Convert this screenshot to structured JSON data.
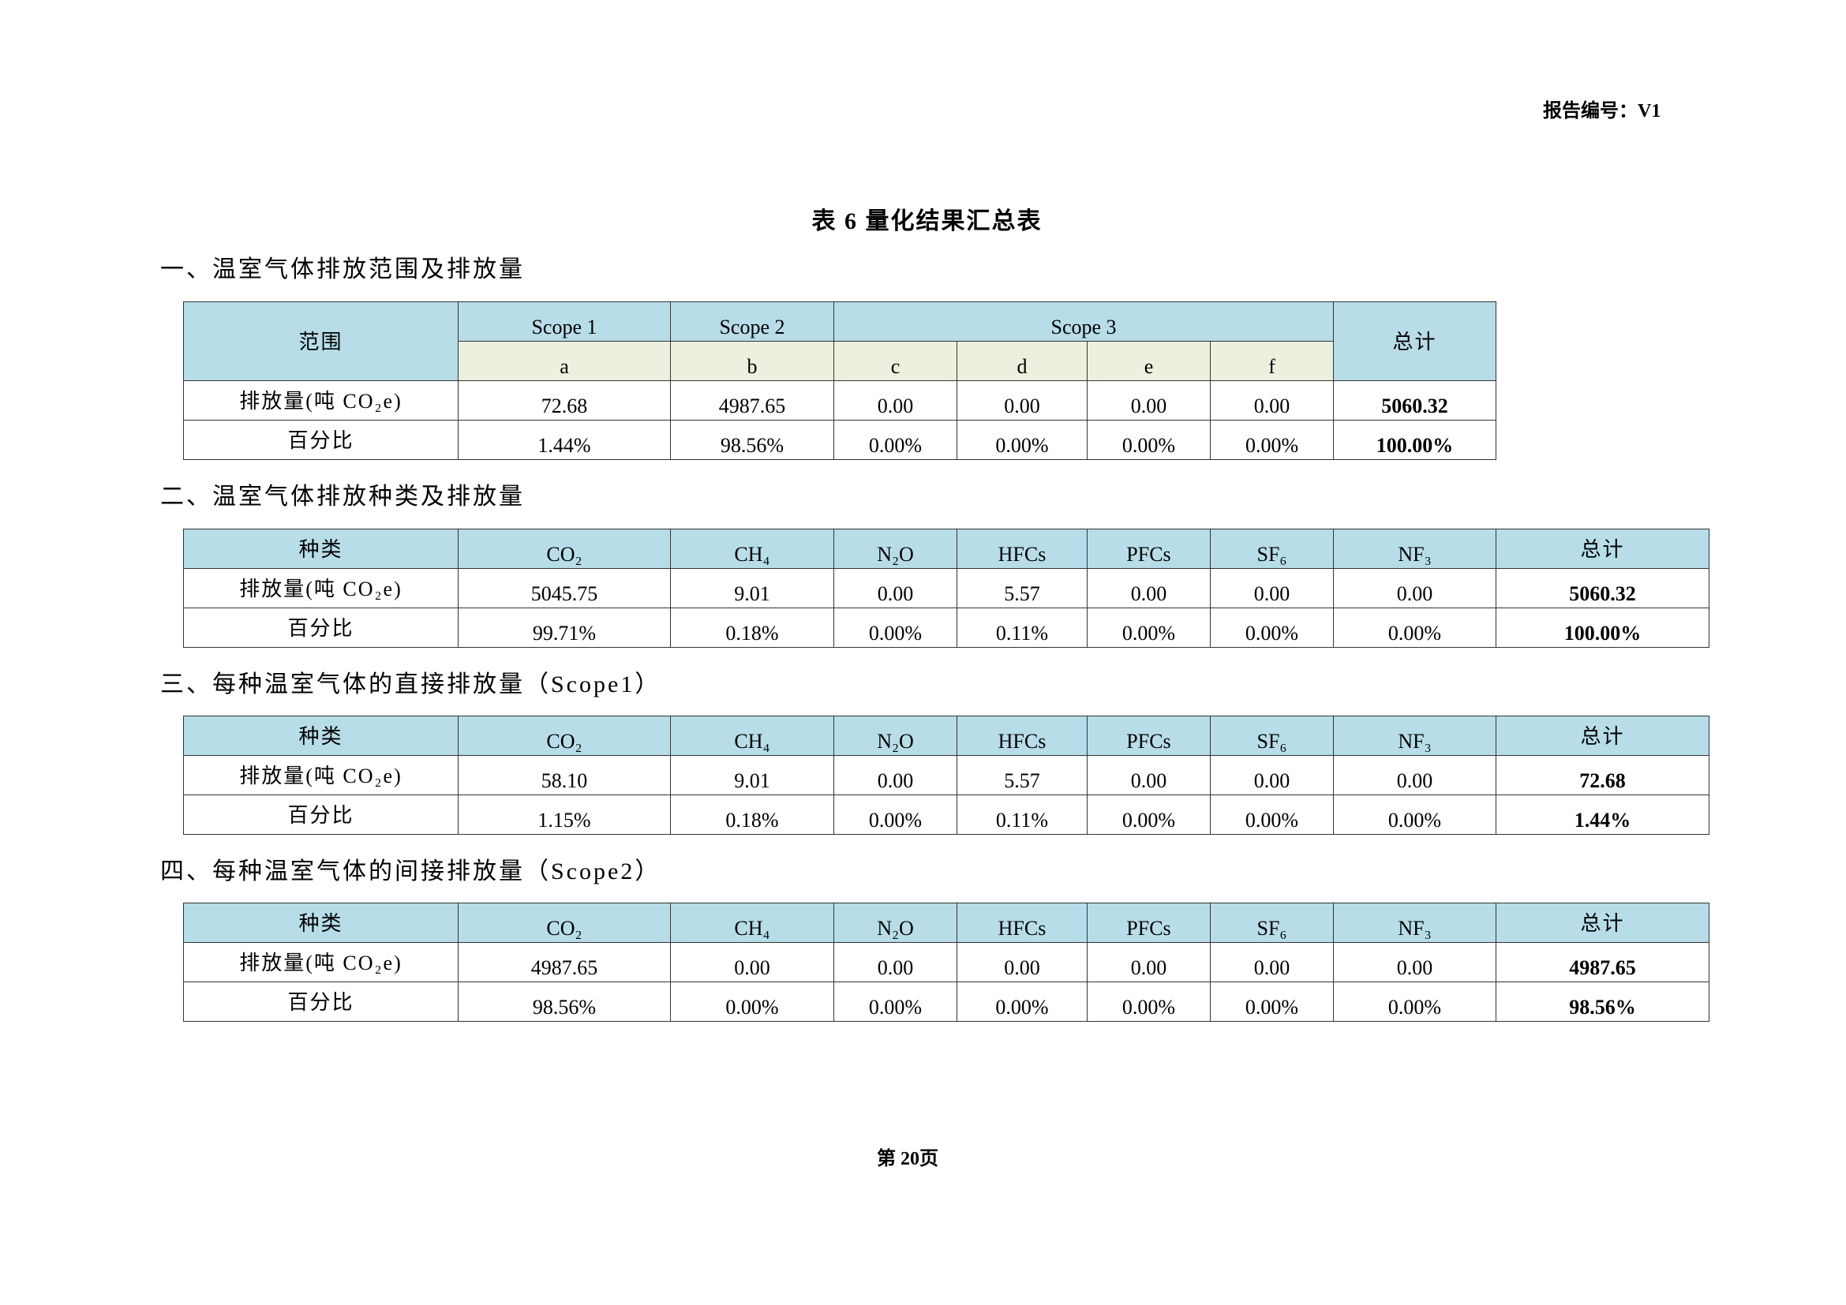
{
  "header": {
    "report_code": "报告编号：V1"
  },
  "title": "表 6  量化结果汇总表",
  "footer": {
    "page": "第 20页"
  },
  "colors": {
    "header_bg": "#b7dde8",
    "subheader_bg": "#ebf1de"
  },
  "scope_table": {
    "heading": "一、温室气体排放范围及排放量",
    "range_label": "范围",
    "scopes": [
      "Scope 1",
      "Scope 2",
      "Scope 3"
    ],
    "total_label": "总计",
    "sub_labels": [
      "a",
      "b",
      "c",
      "d",
      "e",
      "f"
    ],
    "rows": [
      {
        "label": "排放量(吨 CO₂e)",
        "values": [
          "72.68",
          "4987.65",
          "0.00",
          "0.00",
          "0.00",
          "0.00"
        ],
        "total": "5060.32"
      },
      {
        "label": "百分比",
        "values": [
          "1.44%",
          "98.56%",
          "0.00%",
          "0.00%",
          "0.00%",
          "0.00%"
        ],
        "total": "100.00%"
      }
    ]
  },
  "gas_tables": [
    {
      "heading": "二、温室气体排放种类及排放量",
      "header": [
        "种类",
        "CO₂",
        "CH₄",
        "N₂O",
        "HFCs",
        "PFCs",
        "SF₆",
        "NF₃",
        "总计"
      ],
      "rows": [
        {
          "label": "排放量(吨 CO₂e)",
          "values": [
            "5045.75",
            "9.01",
            "0.00",
            "5.57",
            "0.00",
            "0.00",
            "0.00"
          ],
          "total": "5060.32"
        },
        {
          "label": "百分比",
          "values": [
            "99.71%",
            "0.18%",
            "0.00%",
            "0.11%",
            "0.00%",
            "0.00%",
            "0.00%"
          ],
          "total": "100.00%"
        }
      ]
    },
    {
      "heading": "三、每种温室气体的直接排放量（Scope1）",
      "header": [
        "种类",
        "CO₂",
        "CH₄",
        "N₂O",
        "HFCs",
        "PFCs",
        "SF₆",
        "NF₃",
        "总计"
      ],
      "rows": [
        {
          "label": "排放量(吨 CO₂e)",
          "values": [
            "58.10",
            "9.01",
            "0.00",
            "5.57",
            "0.00",
            "0.00",
            "0.00"
          ],
          "total": "72.68"
        },
        {
          "label": "百分比",
          "values": [
            "1.15%",
            "0.18%",
            "0.00%",
            "0.11%",
            "0.00%",
            "0.00%",
            "0.00%"
          ],
          "total": "1.44%"
        }
      ]
    },
    {
      "heading": "四、每种温室气体的间接排放量（Scope2）",
      "header": [
        "种类",
        "CO₂",
        "CH₄",
        "N₂O",
        "HFCs",
        "PFCs",
        "SF₆",
        "NF₃",
        "总计"
      ],
      "rows": [
        {
          "label": "排放量(吨 CO₂e)",
          "values": [
            "4987.65",
            "0.00",
            "0.00",
            "0.00",
            "0.00",
            "0.00",
            "0.00"
          ],
          "total": "4987.65"
        },
        {
          "label": "百分比",
          "values": [
            "98.56%",
            "0.00%",
            "0.00%",
            "0.00%",
            "0.00%",
            "0.00%",
            "0.00%"
          ],
          "total": "98.56%"
        }
      ]
    }
  ]
}
